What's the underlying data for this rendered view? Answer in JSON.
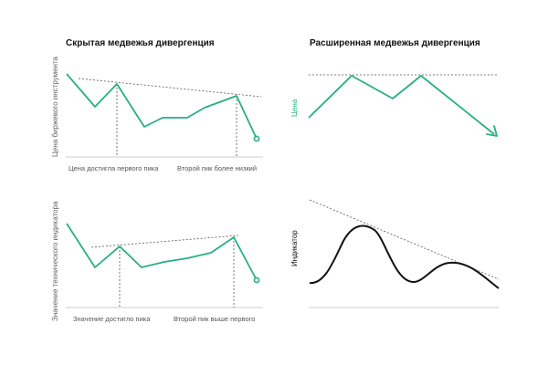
{
  "colors": {
    "accent": "#26b082",
    "line_dark": "#000000",
    "guide": "#555555",
    "caption": "#555555"
  },
  "hidden_divergence": {
    "title": "Скрытая медвежья дивергенция",
    "price_axis_label": "Цена биржевого инструмента",
    "indicator_axis_label": "Значение технического индикатора",
    "price_caption_first": "Цена достигла первого пика",
    "price_caption_second": "Второй пик более низкий",
    "indicator_caption_first": "Значение достигло пика",
    "indicator_caption_second": "Второй пик выше первого"
  },
  "extended_divergence": {
    "title": "Расширенная медвежья дивергенция",
    "price_axis_label": "Цена",
    "indicator_axis_label": "Индикатор"
  },
  "icons": {
    "end_marker": "hollow-circle-icon",
    "arrow": "arrow-head-icon"
  }
}
